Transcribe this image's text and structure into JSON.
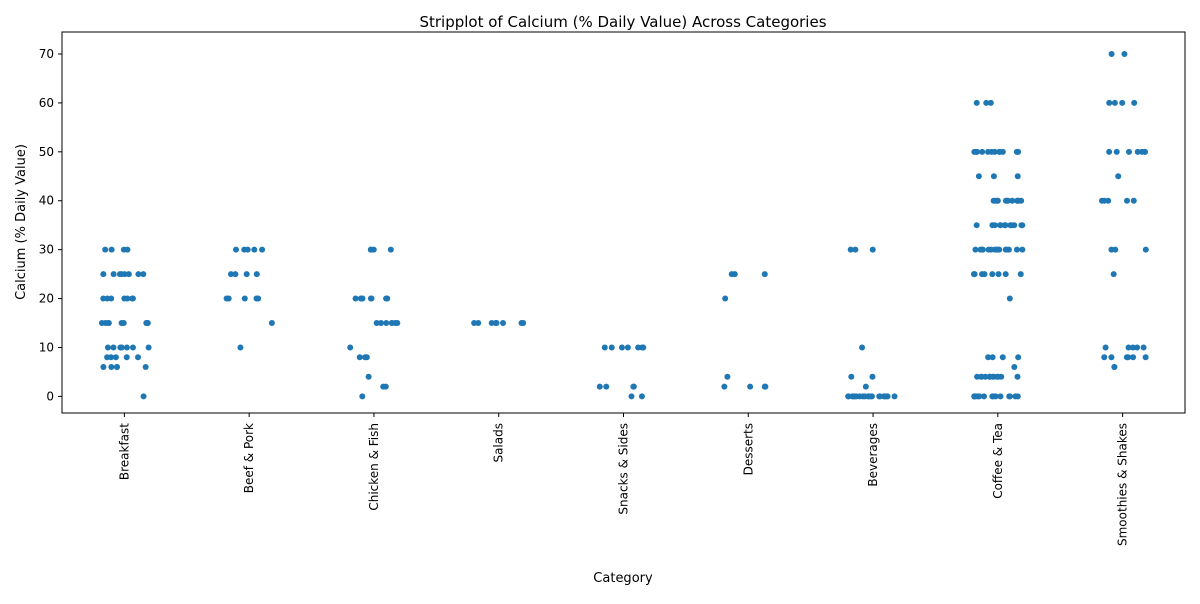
{
  "chart_data": {
    "type": "strip",
    "title": "Stripplot of Calcium (% Daily Value) Across Categories",
    "x_label": "Category",
    "y_label": "Calcium (% Daily Value)",
    "color": "#1f77b4",
    "categories": [
      "Breakfast",
      "Beef & Pork",
      "Chicken & Fish",
      "Salads",
      "Snacks & Sides",
      "Desserts",
      "Beverages",
      "Coffee & Tea",
      "Smoothies & Shakes"
    ],
    "values": [
      [
        30,
        30,
        30,
        30,
        25,
        25,
        25,
        25,
        25,
        25,
        25,
        25,
        20,
        20,
        20,
        20,
        20,
        20,
        20,
        15,
        15,
        15,
        15,
        15,
        15,
        15,
        15,
        15,
        10,
        10,
        10,
        10,
        10,
        10,
        10,
        8,
        8,
        8,
        8,
        8,
        6,
        6,
        6,
        6,
        6,
        0
      ],
      [
        30,
        30,
        30,
        30,
        30,
        25,
        25,
        25,
        25,
        20,
        20,
        20,
        20,
        20,
        15,
        10
      ],
      [
        30,
        30,
        30,
        30,
        20,
        20,
        20,
        20,
        20,
        20,
        20,
        20,
        15,
        15,
        15,
        15,
        15,
        15,
        15,
        10,
        8,
        8,
        8,
        4,
        2,
        2,
        0
      ],
      [
        15,
        15,
        15,
        15,
        15,
        15,
        15,
        15
      ],
      [
        10,
        10,
        10,
        10,
        10,
        10,
        10,
        2,
        2,
        2,
        2,
        0,
        0
      ],
      [
        25,
        25,
        25,
        20,
        4,
        2,
        2,
        2,
        2
      ],
      [
        30,
        30,
        30,
        10,
        4,
        4,
        2,
        0,
        0,
        0,
        0,
        0,
        0,
        0,
        0,
        0,
        0,
        0,
        0,
        0,
        0,
        0,
        0,
        0,
        0,
        0,
        0
      ],
      [
        60,
        60,
        60,
        50,
        50,
        50,
        50,
        50,
        50,
        50,
        50,
        50,
        50,
        50,
        50,
        45,
        45,
        45,
        40,
        40,
        40,
        40,
        40,
        40,
        40,
        40,
        40,
        40,
        40,
        40,
        35,
        35,
        35,
        35,
        35,
        35,
        35,
        35,
        35,
        35,
        35,
        35,
        30,
        30,
        30,
        30,
        30,
        30,
        30,
        30,
        30,
        30,
        30,
        30,
        30,
        30,
        30,
        25,
        25,
        25,
        25,
        25,
        25,
        25,
        25,
        20,
        8,
        8,
        8,
        8,
        6,
        4,
        4,
        4,
        4,
        4,
        4,
        4,
        4,
        4,
        4,
        4,
        4,
        0,
        0,
        0,
        0,
        0,
        0,
        0,
        0,
        0,
        0,
        0,
        0,
        0,
        0,
        0
      ],
      [
        70,
        70,
        60,
        60,
        60,
        60,
        50,
        50,
        50,
        50,
        50,
        50,
        50,
        45,
        40,
        40,
        40,
        40,
        40,
        30,
        30,
        30,
        25,
        10,
        10,
        10,
        10,
        10,
        8,
        8,
        8,
        8,
        8,
        8,
        6,
        6
      ]
    ],
    "ylim": [
      -3.4,
      74.5
    ],
    "yticks": [
      0,
      10,
      20,
      30,
      40,
      50,
      60,
      70
    ],
    "grid": false
  }
}
